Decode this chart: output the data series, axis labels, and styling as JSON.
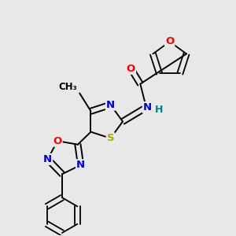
{
  "bg_color": "#e8e8e8",
  "bond_color": "#000000",
  "atom_colors": {
    "N": "#0000cc",
    "O": "#ff0000",
    "S": "#aaaa00",
    "C": "#000000",
    "H": "#008080"
  },
  "font_size": 9.5
}
